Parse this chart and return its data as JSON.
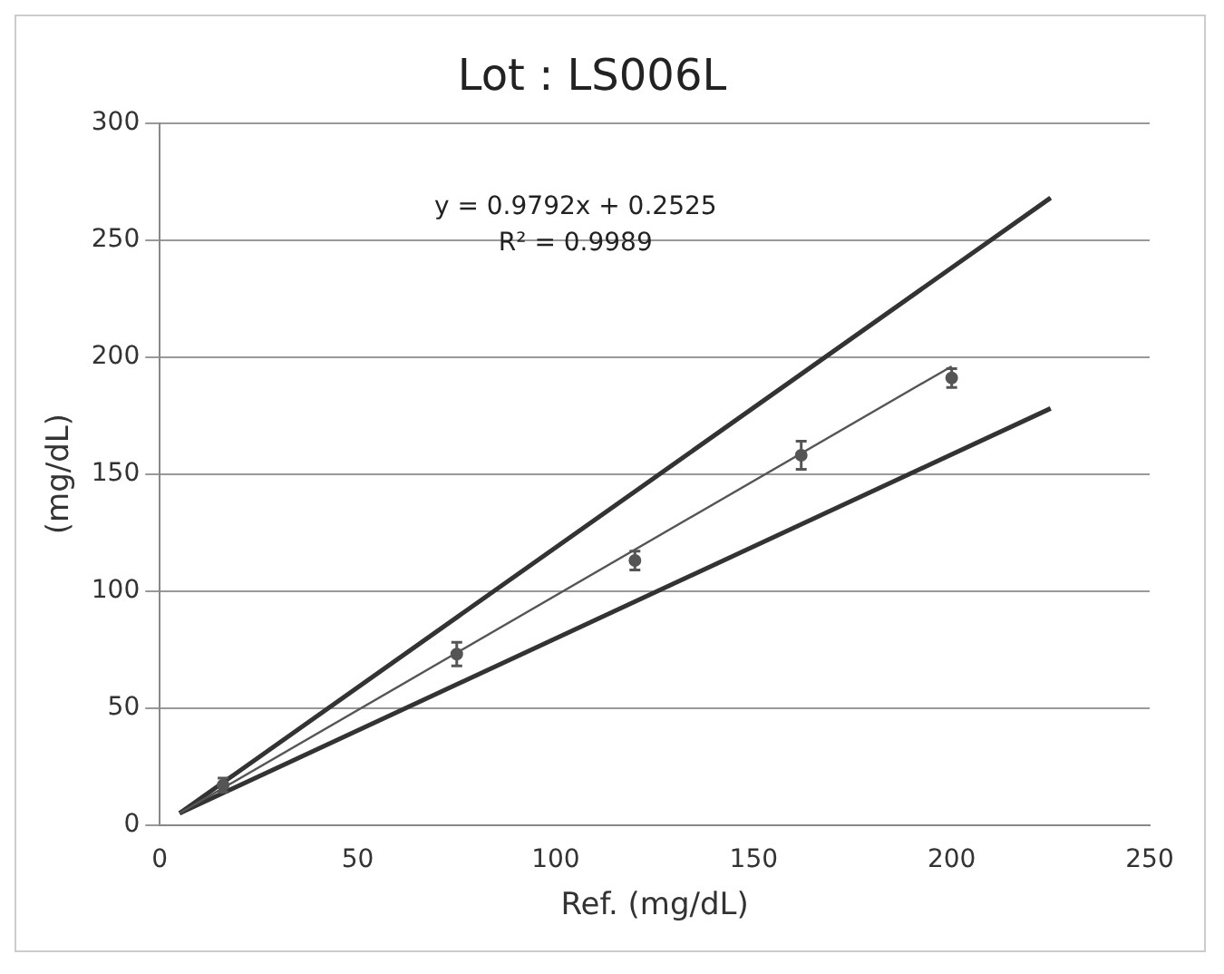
{
  "chart_data": {
    "type": "scatter",
    "title": "Lot : LS006L",
    "xlabel": "Ref. (mg/dL)",
    "ylabel": "(mg/dL)",
    "xlim": [
      0,
      250
    ],
    "xticks": [
      0,
      50,
      100,
      150,
      200,
      250
    ],
    "ylim": [
      0,
      300
    ],
    "yticks": [
      0,
      50,
      100,
      150,
      200,
      250,
      300
    ],
    "grid": "y",
    "legend": false,
    "marker": "circle",
    "annotations": [
      "y = 0.9792x + 0.2525",
      "R² = 0.9989"
    ],
    "series": [
      {
        "color": "#555555",
        "x": [
          16,
          75,
          120,
          162,
          200
        ],
        "values": [
          17,
          73,
          113,
          158,
          191
        ],
        "errors": [
          3,
          5,
          4,
          6,
          4
        ]
      },
      {
        "type": "line",
        "marker": "none",
        "color": "#555555",
        "x": [
          5,
          200
        ],
        "values": [
          5,
          196
        ]
      },
      {
        "type": "line",
        "marker": "none",
        "color": "#333333",
        "x": [
          5,
          225
        ],
        "values": [
          5,
          268
        ]
      },
      {
        "type": "line",
        "marker": "none",
        "color": "#333333",
        "x": [
          5,
          225
        ],
        "values": [
          5,
          178
        ]
      }
    ]
  }
}
